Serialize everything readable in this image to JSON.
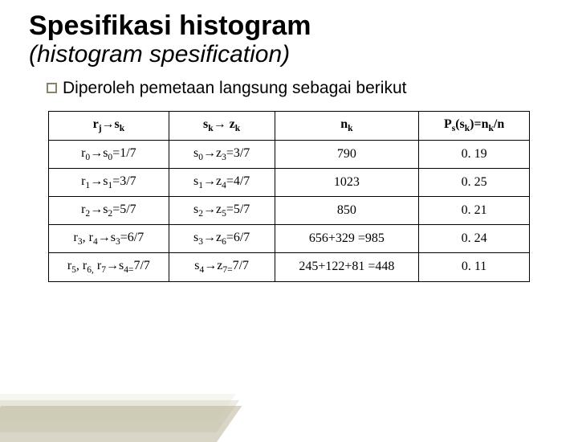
{
  "title": "Spesifikasi histogram",
  "subtitle": "(histogram spesification)",
  "bullet_text": "Diperoleh pemetaan langsung sebagai berikut",
  "table": {
    "headers": {
      "h1_a": "r",
      "h1_b": "j",
      "h1_c": "s",
      "h1_d": "k",
      "h2_a": "s",
      "h2_b": "k",
      "h2_c": " z",
      "h2_d": "k",
      "h3_a": "n",
      "h3_b": "k",
      "h4_a": "P",
      "h4_b": "s",
      "h4_c": "(s",
      "h4_d": "k",
      "h4_e": ")=n",
      "h4_f": "k",
      "h4_g": "/n"
    },
    "rows": [
      {
        "c1_a": "r",
        "c1_b": "0",
        "c1_c": "s",
        "c1_d": "0",
        "c1_e": "=1/7",
        "c2_a": "s",
        "c2_b": "0",
        "c2_c": "z",
        "c2_d": "3",
        "c2_e": "=3/7",
        "c3": "790",
        "c4": "0. 19"
      },
      {
        "c1_a": "r",
        "c1_b": "1",
        "c1_c": "s",
        "c1_d": "1",
        "c1_e": "=3/7",
        "c2_a": "s",
        "c2_b": "1",
        "c2_c": "z",
        "c2_d": "4",
        "c2_e": "=4/7",
        "c3": "1023",
        "c4": "0. 25"
      },
      {
        "c1_a": "r",
        "c1_b": "2",
        "c1_c": "s",
        "c1_d": "2",
        "c1_e": "=5/7",
        "c2_a": "s",
        "c2_b": "2",
        "c2_c": "z",
        "c2_d": "5",
        "c2_e": "=5/7",
        "c3": "850",
        "c4": "0. 21"
      },
      {
        "c1_pre": "r",
        "c1_b": "3",
        "c1_mid": ", r",
        "c1_d": "4",
        "c1_c": "s",
        "c1_f": "3",
        "c1_e": "=6/7",
        "c2_a": "s",
        "c2_b": "3",
        "c2_c": "z",
        "c2_d": "6",
        "c2_e": "=6/7",
        "c3": "656+329 =985",
        "c4": "0. 24"
      },
      {
        "c1_pre": "r",
        "c1_b": "5",
        "c1_mid": ", r",
        "c1_d": "6,",
        "c1_mid2": " r",
        "c1_g": "7",
        "c1_c": "s",
        "c1_f": "4=",
        "c1_e": "7/7",
        "c2_a": "s",
        "c2_b": "4",
        "c2_c": "z",
        "c2_d": "7=",
        "c2_e": "7/7",
        "c3": "245+122+81 =448",
        "c4": "0. 11"
      }
    ]
  }
}
